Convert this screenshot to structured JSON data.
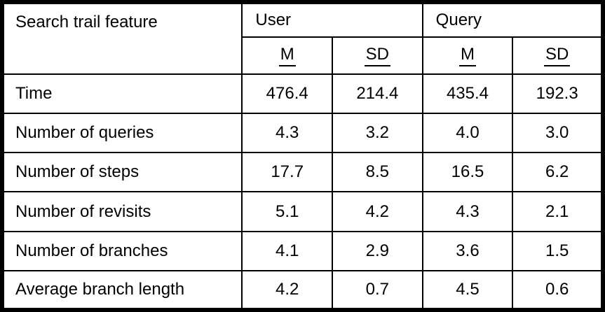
{
  "colors": {
    "border": "#000000",
    "text": "#000000",
    "background": "#ffffff"
  },
  "table": {
    "feature_header": "Search trail feature",
    "group_headers": [
      "User",
      "Query"
    ],
    "sub_headers": [
      "M",
      "SD",
      "M",
      "SD"
    ],
    "rows": [
      {
        "feature": "Time",
        "values": [
          "476.4",
          "214.4",
          "435.4",
          "192.3"
        ]
      },
      {
        "feature": "Number of queries",
        "values": [
          "4.3",
          "3.2",
          "4.0",
          "3.0"
        ]
      },
      {
        "feature": "Number of steps",
        "values": [
          "17.7",
          "8.5",
          "16.5",
          "6.2"
        ]
      },
      {
        "feature": "Number of revisits",
        "values": [
          "5.1",
          "4.2",
          "4.3",
          "2.1"
        ]
      },
      {
        "feature": "Number of branches",
        "values": [
          "4.1",
          "2.9",
          "3.6",
          "1.5"
        ]
      },
      {
        "feature": "Average branch length",
        "values": [
          "4.2",
          "0.7",
          "4.5",
          "0.6"
        ]
      }
    ]
  }
}
